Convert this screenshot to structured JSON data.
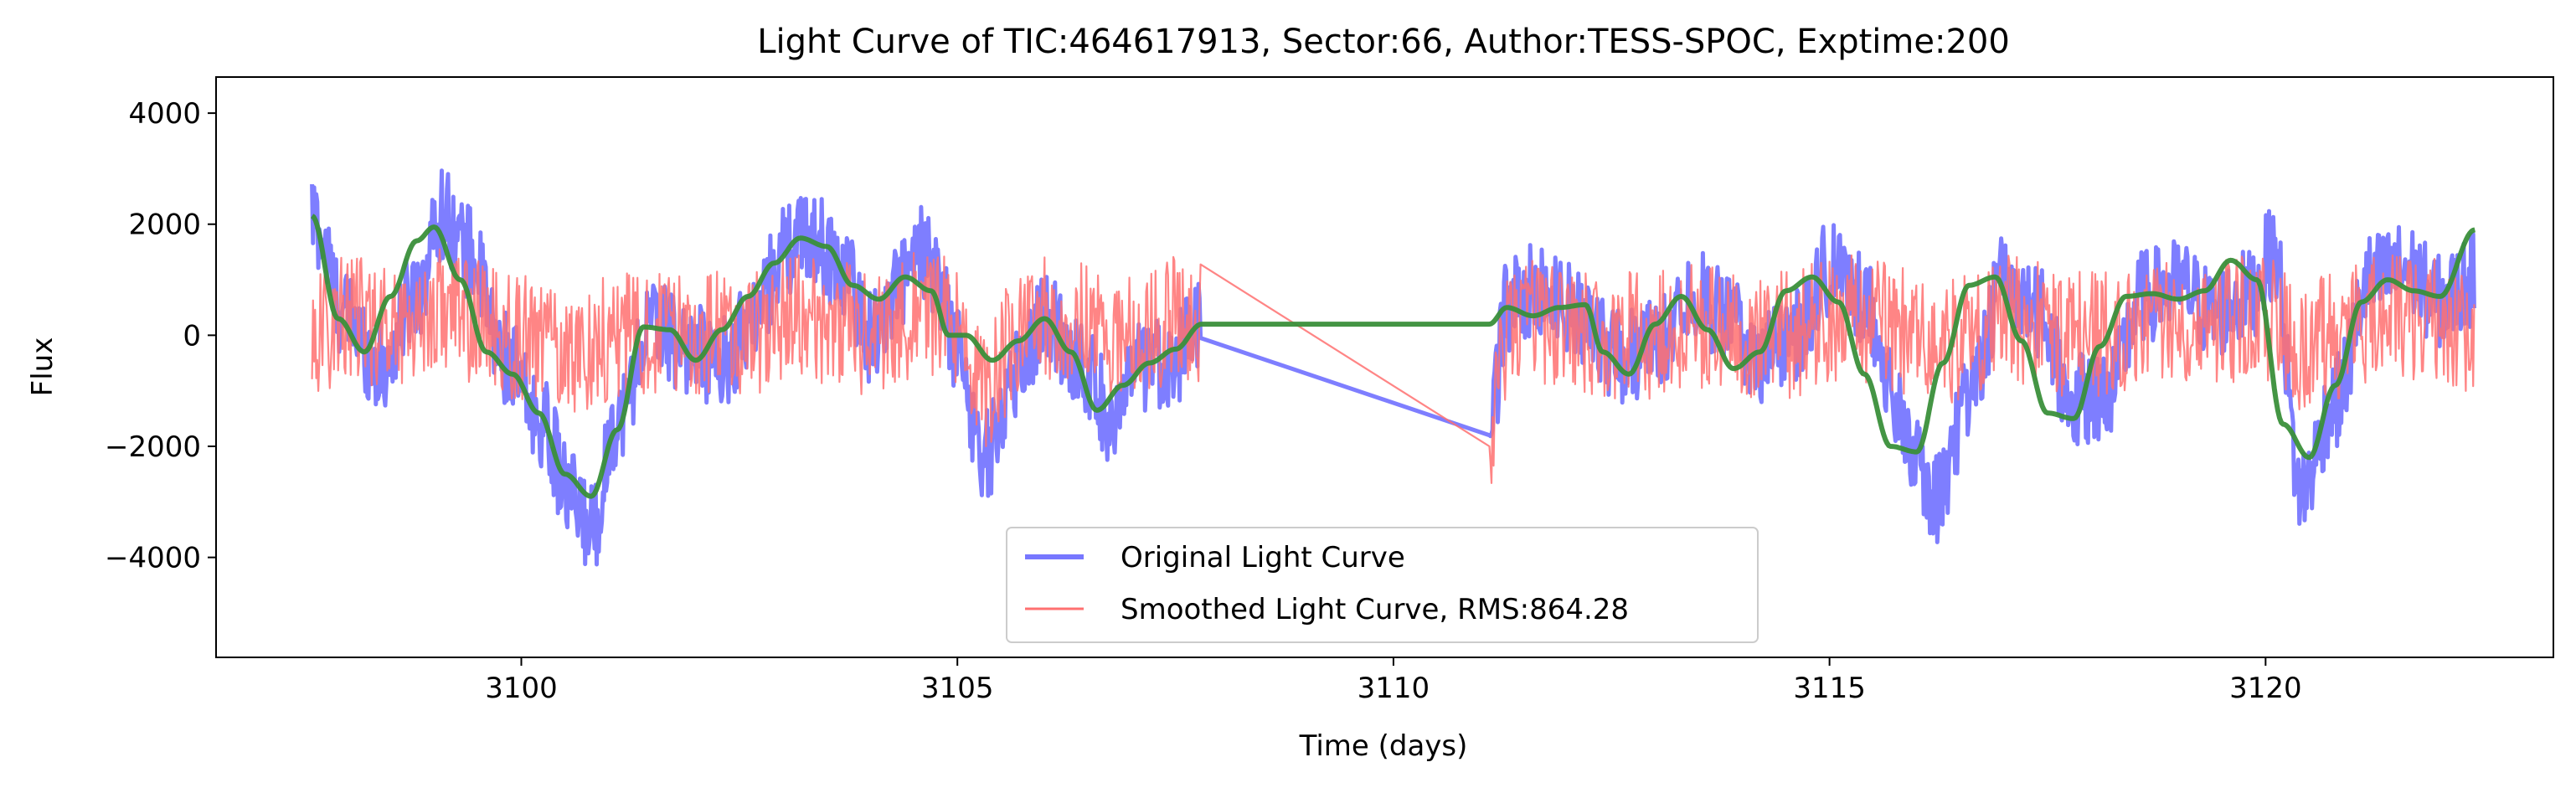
{
  "chart_data": {
    "type": "line",
    "title": "Light Curve of TIC:464617913, Sector:66, Author:TESS-SPOC, Exptime:200",
    "xlabel": "Time (days)",
    "ylabel": "Flux",
    "xlim": [
      3096.5,
      3123.3
    ],
    "ylim": [
      -5800,
      4650
    ],
    "xticks": [
      3100,
      3105,
      3110,
      3115,
      3120
    ],
    "yticks": [
      -4000,
      -2000,
      0,
      2000,
      4000
    ],
    "x_tick_labels": [
      "3100",
      "3105",
      "3110",
      "3115",
      "3120"
    ],
    "y_tick_labels": [
      "−4000",
      "−2000",
      "0",
      "2000",
      "4000"
    ],
    "grid": false,
    "legend_position": "lower center",
    "series": [
      {
        "name": "Original Light Curve",
        "color": "#7777ff",
        "style": "noisy-band",
        "x": [
          3097.6,
          3098.0,
          3098.4,
          3098.8,
          3099.1,
          3099.4,
          3099.8,
          3100.2,
          3100.6,
          3100.8,
          3101.1,
          3101.5,
          3101.9,
          3102.3,
          3102.7,
          3103.0,
          3103.3,
          3103.7,
          3104.0,
          3104.4,
          3104.6,
          3104.8,
          3105.0,
          3105.3,
          3105.7,
          3106.0,
          3106.4,
          3106.8,
          3107.1,
          3107.5,
          3107.8,
          3111.1,
          3111.3,
          3111.6,
          3111.9,
          3112.2,
          3112.6,
          3113.0,
          3113.4,
          3113.8,
          3114.2,
          3114.6,
          3115.0,
          3115.4,
          3115.8,
          3116.2,
          3116.6,
          3117.0,
          3117.4,
          3117.8,
          3118.2,
          3118.6,
          3119.0,
          3119.4,
          3119.8,
          3120.1,
          3120.4,
          3120.8,
          3121.2,
          3121.6,
          3122.0,
          3122.4
        ],
        "y": [
          2100,
          300,
          -600,
          800,
          2200,
          1500,
          -400,
          -1500,
          -3000,
          -3500,
          -1500,
          200,
          -200,
          -500,
          400,
          1500,
          1800,
          1200,
          0,
          1000,
          1500,
          800,
          -300,
          -2200,
          -600,
          300,
          -500,
          -1500,
          -600,
          -400,
          300,
          -1800,
          500,
          800,
          600,
          300,
          -400,
          -200,
          800,
          400,
          -500,
          0,
          1200,
          700,
          -1500,
          -3000,
          -1200,
          1000,
          400,
          -1200,
          -1000,
          700,
          900,
          400,
          700,
          1500,
          -2800,
          -1200,
          1000,
          1200,
          600,
          1000
        ],
        "noise_amplitude": 850
      },
      {
        "name": "Smoothed Light Curve, RMS:864.28",
        "color": "#ff7070",
        "style": "noisy-thin",
        "x": [
          3097.6,
          3098.0,
          3098.4,
          3098.8,
          3099.1,
          3099.4,
          3099.8,
          3100.2,
          3100.6,
          3100.8,
          3101.1,
          3101.5,
          3101.9,
          3102.3,
          3102.7,
          3103.0,
          3103.3,
          3103.7,
          3104.0,
          3104.4,
          3104.6,
          3104.8,
          3105.0,
          3105.3,
          3105.7,
          3106.0,
          3106.4,
          3106.8,
          3107.1,
          3107.5,
          3107.8,
          3111.1,
          3111.3,
          3111.6,
          3111.9,
          3112.2,
          3112.6,
          3113.0,
          3113.4,
          3113.8,
          3114.2,
          3114.6,
          3115.0,
          3115.4,
          3115.8,
          3116.2,
          3116.6,
          3117.0,
          3117.4,
          3117.8,
          3118.2,
          3118.6,
          3119.0,
          3119.4,
          3119.8,
          3120.1,
          3120.4,
          3120.8,
          3121.2,
          3121.6,
          3122.0,
          3122.4
        ],
        "y": [
          0,
          300,
          200,
          300,
          500,
          300,
          0,
          -100,
          -300,
          -200,
          0,
          0,
          100,
          0,
          0,
          300,
          300,
          200,
          0,
          300,
          500,
          300,
          200,
          -1000,
          0,
          300,
          200,
          0,
          0,
          300,
          300,
          -2000,
          0,
          300,
          200,
          0,
          0,
          0,
          200,
          100,
          0,
          0,
          300,
          300,
          100,
          -200,
          0,
          300,
          200,
          0,
          0,
          300,
          300,
          300,
          300,
          300,
          -200,
          0,
          300,
          300,
          300,
          0
        ],
        "noise_amplitude": 1150
      },
      {
        "name": "",
        "color": "#3a8f3a",
        "style": "smooth",
        "x": [
          3097.6,
          3097.9,
          3098.2,
          3098.5,
          3098.8,
          3099.0,
          3099.3,
          3099.6,
          3099.9,
          3100.2,
          3100.5,
          3100.8,
          3101.1,
          3101.4,
          3101.7,
          3102.0,
          3102.3,
          3102.6,
          3102.9,
          3103.2,
          3103.5,
          3103.8,
          3104.1,
          3104.4,
          3104.7,
          3104.9,
          3105.1,
          3105.4,
          3105.7,
          3106.0,
          3106.3,
          3106.6,
          3106.9,
          3107.2,
          3107.5,
          3107.8,
          3111.1,
          3111.3,
          3111.6,
          3111.9,
          3112.2,
          3112.4,
          3112.7,
          3113.0,
          3113.3,
          3113.6,
          3113.9,
          3114.2,
          3114.5,
          3114.8,
          3115.1,
          3115.4,
          3115.7,
          3116.0,
          3116.3,
          3116.6,
          3116.9,
          3117.2,
          3117.5,
          3117.8,
          3118.1,
          3118.4,
          3118.7,
          3119.0,
          3119.3,
          3119.6,
          3119.9,
          3120.2,
          3120.5,
          3120.8,
          3121.1,
          3121.4,
          3121.7,
          3122.0,
          3122.4
        ],
        "y": [
          2150,
          300,
          -300,
          700,
          1700,
          1950,
          1000,
          -300,
          -700,
          -1400,
          -2500,
          -2900,
          -1700,
          150,
          100,
          -450,
          100,
          700,
          1300,
          1750,
          1600,
          900,
          650,
          1050,
          800,
          0,
          0,
          -450,
          -100,
          300,
          -300,
          -1350,
          -900,
          -500,
          -250,
          200,
          200,
          500,
          350,
          500,
          550,
          -300,
          -700,
          200,
          700,
          100,
          -600,
          -300,
          800,
          1050,
          600,
          -700,
          -2000,
          -2100,
          -500,
          900,
          1050,
          -100,
          -1400,
          -1500,
          -200,
          700,
          750,
          650,
          800,
          1350,
          1000,
          -1600,
          -2200,
          -900,
          600,
          1000,
          800,
          700,
          1900
        ]
      }
    ]
  }
}
